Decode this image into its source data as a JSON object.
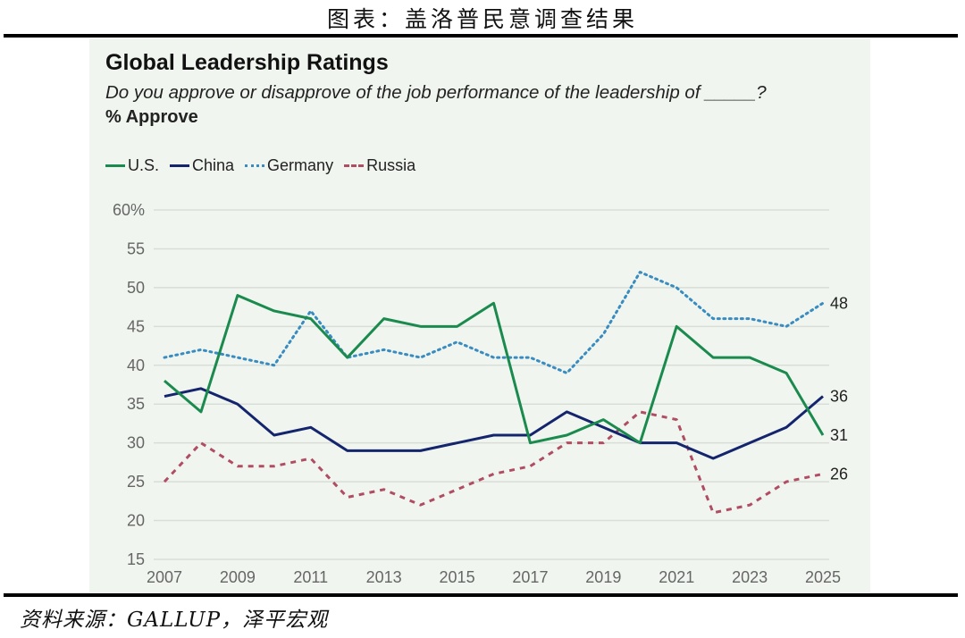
{
  "figure": {
    "title": "图表：盖洛普民意调查结果",
    "source": "资料来源：GALLUP，泽平宏观"
  },
  "chart_data": {
    "type": "line",
    "title": "Global Leadership Ratings",
    "subtitle": "Do you approve or disapprove of the job performance of the leadership of _____?",
    "ylabel": "% Approve",
    "xlabel": "",
    "x": [
      2007,
      2008,
      2009,
      2010,
      2011,
      2012,
      2013,
      2014,
      2015,
      2016,
      2017,
      2018,
      2019,
      2020,
      2021,
      2022,
      2023,
      2024,
      2025
    ],
    "xticks": [
      "2007",
      "2009",
      "2011",
      "2013",
      "2015",
      "2017",
      "2019",
      "2021",
      "2023",
      "2025"
    ],
    "yticks": [
      "15",
      "20",
      "25",
      "30",
      "35",
      "40",
      "45",
      "50",
      "55",
      "60%"
    ],
    "ylim": [
      15,
      60
    ],
    "grid": true,
    "legend_position": "top-left",
    "series": [
      {
        "name": "U.S.",
        "color": "#1b8a4e",
        "style": "solid",
        "values": [
          38,
          34,
          49,
          47,
          46,
          41,
          46,
          45,
          45,
          48,
          30,
          31,
          33,
          30,
          45,
          41,
          41,
          39,
          31
        ],
        "end_label": "31"
      },
      {
        "name": "China",
        "color": "#14256e",
        "style": "solid",
        "values": [
          36,
          37,
          35,
          31,
          32,
          29,
          29,
          29,
          30,
          31,
          31,
          34,
          32,
          30,
          30,
          28,
          30,
          32,
          36
        ],
        "end_label": "36"
      },
      {
        "name": "Germany",
        "color": "#3a8cc0",
        "style": "dotted",
        "values": [
          41,
          42,
          41,
          40,
          47,
          41,
          42,
          41,
          43,
          41,
          41,
          39,
          44,
          52,
          50,
          46,
          46,
          45,
          48
        ],
        "end_label": "48"
      },
      {
        "name": "Russia",
        "color": "#b04d63",
        "style": "dashed",
        "values": [
          25,
          30,
          27,
          27,
          28,
          23,
          24,
          22,
          24,
          26,
          27,
          30,
          30,
          34,
          33,
          21,
          22,
          25,
          26
        ],
        "end_label": "26"
      }
    ]
  }
}
